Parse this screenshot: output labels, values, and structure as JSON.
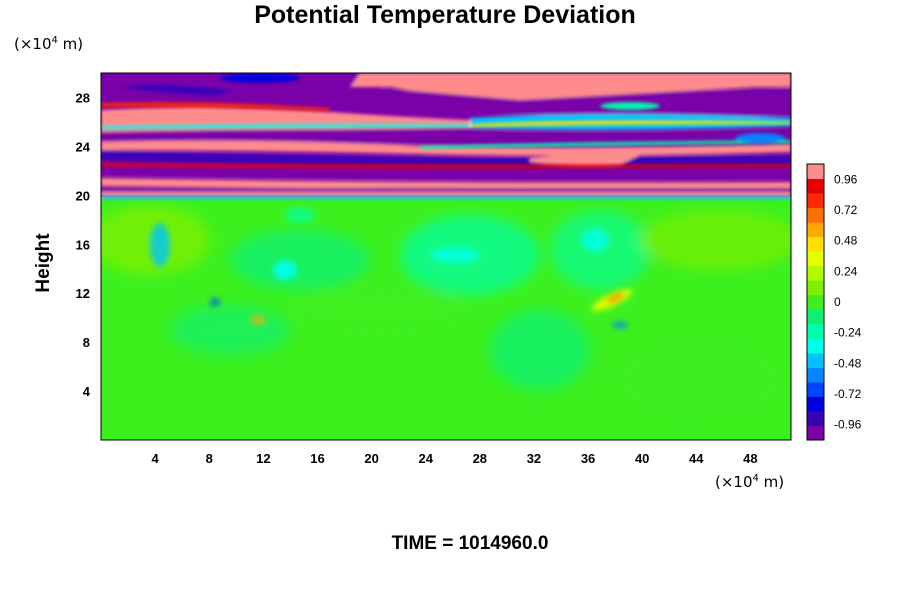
{
  "chart_data": {
    "type": "heatmap",
    "title": "Potential Temperature Deviation",
    "ylabel": "Height",
    "x_unit": {
      "prefix": "(×10",
      "exp": "4",
      "suffix": " m)"
    },
    "y_unit": {
      "prefix": "(×10",
      "exp": "4",
      "suffix": " m)"
    },
    "xlim": [
      0,
      51
    ],
    "ylim": [
      0,
      30
    ],
    "x_ticks": [
      "4",
      "8",
      "12",
      "16",
      "20",
      "24",
      "28",
      "32",
      "36",
      "40",
      "44",
      "48"
    ],
    "y_ticks": [
      "4",
      "8",
      "12",
      "16",
      "20",
      "24",
      "28"
    ],
    "colorbar": {
      "range": [
        -1.08,
        1.08
      ],
      "tick_labels": [
        "0.96",
        "0.72",
        "0.48",
        "0.24",
        "0",
        "-0.24",
        "-0.48",
        "-0.72",
        "-0.96"
      ],
      "colors": [
        "#7a00a8",
        "#3a00b8",
        "#0000e0",
        "#0044ff",
        "#0088ff",
        "#00c4ff",
        "#00ffee",
        "#00ffaa",
        "#10f070",
        "#40ee20",
        "#7cf000",
        "#b4f800",
        "#e6ff00",
        "#ffe000",
        "#ffaa00",
        "#ff6e00",
        "#ff2800",
        "#e80000",
        "#ff8c8c"
      ]
    },
    "field_summary": [
      {
        "y_range": [
          0,
          19.8
        ],
        "description": "mostly near 0, weak -0.1 to -0.5 swirls, local +0.4 to +0.6 near x=38, y=11"
      },
      {
        "y_range": [
          19.8,
          30
        ],
        "description": "banded alternating -0.96 and +0.96 layers"
      }
    ]
  },
  "footer": {
    "label": "TIME = 1014960.0"
  }
}
